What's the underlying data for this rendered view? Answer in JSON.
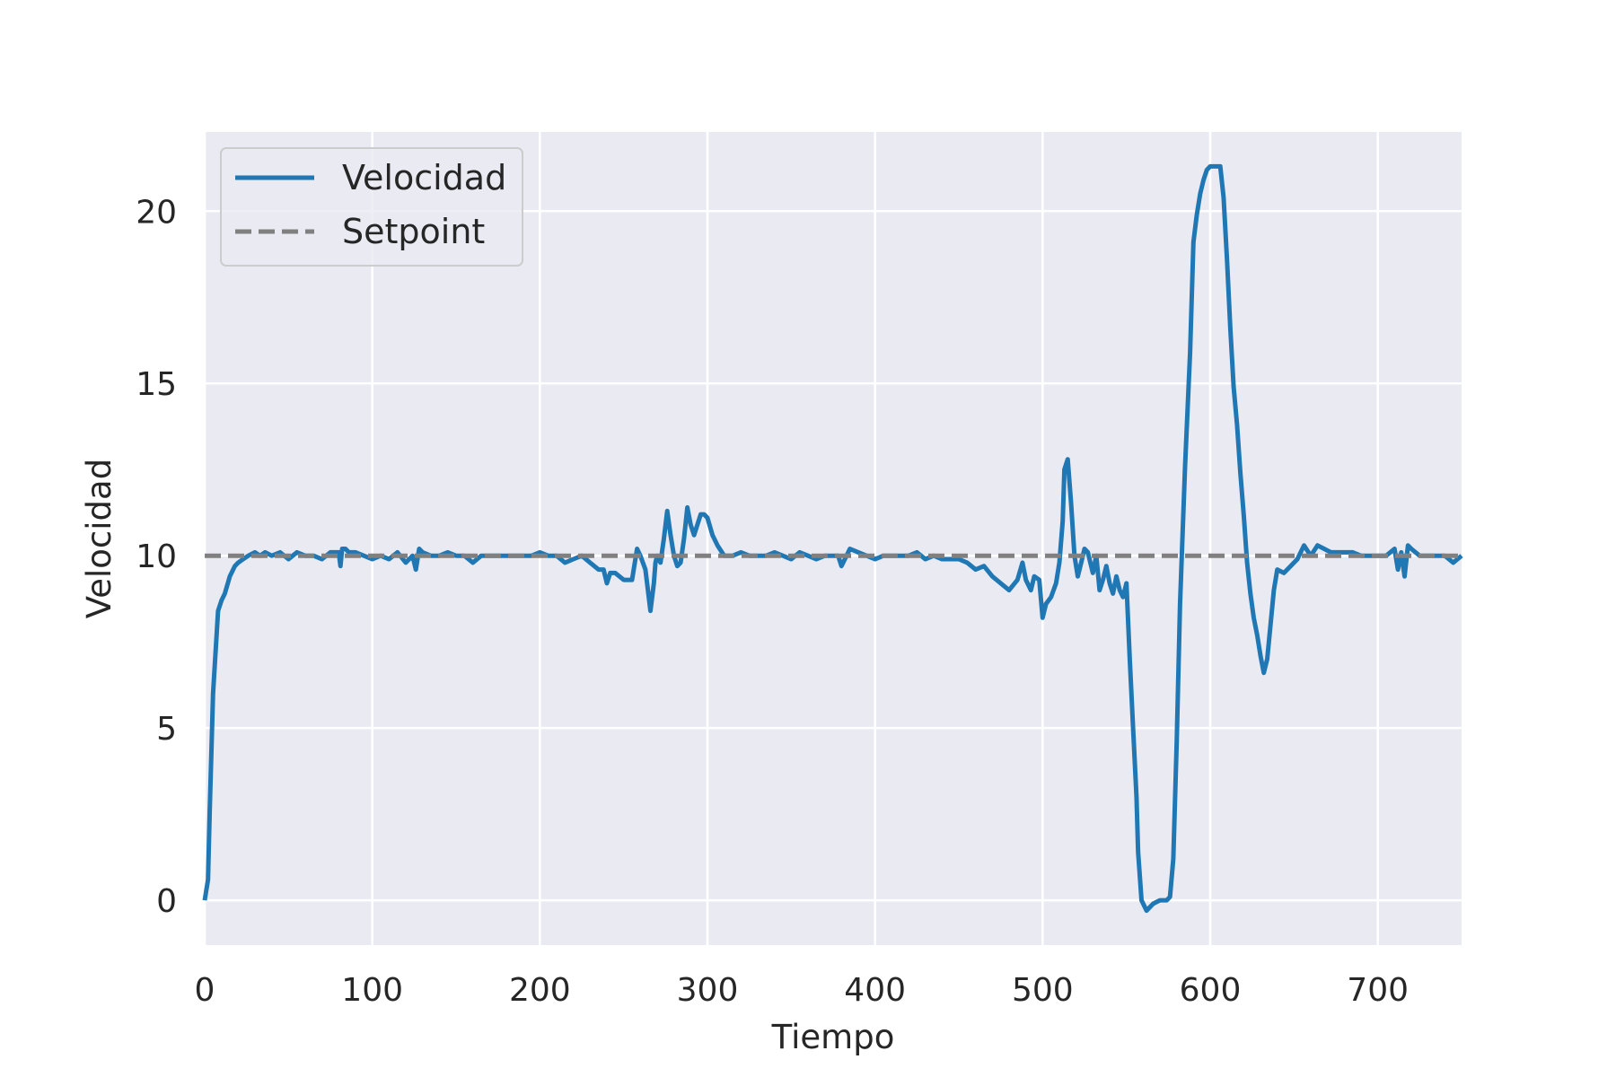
{
  "chart_data": {
    "type": "line",
    "title": "",
    "xlabel": "Tiempo",
    "ylabel": "Velocidad",
    "xlim": [
      0,
      750
    ],
    "ylim": [
      -1.3,
      22.3
    ],
    "xticks": [
      0,
      100,
      200,
      300,
      400,
      500,
      600,
      700
    ],
    "yticks": [
      0,
      5,
      10,
      15,
      20
    ],
    "grid": true,
    "legend": {
      "position": "top-left"
    },
    "colors": {
      "background": "#eaeaf2",
      "grid": "#ffffff",
      "velocidad": "#1f77b4",
      "setpoint": "#808080",
      "text": "#262626"
    },
    "series": [
      {
        "name": "Velocidad",
        "style": "solid",
        "x": [
          0,
          2,
          3,
          5,
          8,
          10,
          12,
          15,
          18,
          20,
          23,
          26,
          30,
          33,
          36,
          40,
          45,
          50,
          55,
          60,
          65,
          70,
          75,
          80,
          81,
          82,
          84,
          86,
          90,
          95,
          100,
          105,
          110,
          115,
          120,
          124,
          126,
          128,
          130,
          135,
          140,
          145,
          150,
          155,
          160,
          165,
          170,
          175,
          180,
          185,
          190,
          195,
          200,
          205,
          210,
          215,
          220,
          225,
          230,
          235,
          238,
          240,
          242,
          245,
          250,
          252,
          255,
          258,
          260,
          263,
          266,
          268,
          269,
          270,
          272,
          274,
          276,
          278,
          280,
          282,
          284,
          286,
          288,
          290,
          292,
          294,
          296,
          298,
          300,
          303,
          306,
          310,
          315,
          320,
          325,
          330,
          335,
          340,
          345,
          350,
          355,
          360,
          365,
          370,
          375,
          378,
          380,
          385,
          390,
          395,
          400,
          405,
          410,
          415,
          420,
          425,
          430,
          435,
          440,
          445,
          450,
          455,
          460,
          465,
          470,
          475,
          480,
          485,
          488,
          490,
          493,
          495,
          498,
          500,
          502,
          505,
          508,
          510,
          512,
          513,
          515,
          517,
          519,
          521,
          523,
          525,
          527,
          530,
          532,
          534,
          536,
          538,
          540,
          542,
          544,
          546,
          548,
          550,
          552,
          554,
          556,
          557,
          559,
          562,
          566,
          570,
          572,
          574,
          576,
          578,
          580,
          582,
          585,
          588,
          590,
          592,
          594,
          596,
          598,
          600,
          602,
          604,
          606,
          608,
          610,
          612,
          614,
          616,
          618,
          620,
          622,
          624,
          626,
          628,
          630,
          632,
          634,
          636,
          638,
          640,
          644,
          648,
          652,
          656,
          660,
          664,
          668,
          672,
          676,
          680,
          685,
          690,
          695,
          700,
          705,
          710,
          712,
          714,
          716,
          718,
          720,
          725,
          730,
          735,
          740,
          745,
          750
        ],
        "y": [
          0.0,
          0.6,
          2.6,
          6.0,
          8.4,
          8.7,
          8.9,
          9.4,
          9.7,
          9.8,
          9.9,
          10.0,
          10.1,
          10.0,
          10.1,
          10.0,
          10.1,
          9.9,
          10.1,
          10.0,
          10.0,
          9.9,
          10.1,
          10.1,
          9.7,
          10.2,
          10.2,
          10.1,
          10.1,
          10.0,
          9.9,
          10.0,
          9.9,
          10.1,
          9.8,
          10.0,
          9.6,
          10.2,
          10.1,
          10.0,
          10.0,
          10.1,
          10.0,
          10.0,
          9.8,
          10.0,
          10.0,
          10.0,
          10.0,
          10.0,
          10.0,
          10.0,
          10.1,
          10.0,
          10.0,
          9.8,
          9.9,
          10.0,
          9.8,
          9.6,
          9.6,
          9.2,
          9.5,
          9.5,
          9.3,
          9.3,
          9.3,
          10.2,
          10.0,
          9.6,
          8.4,
          9.2,
          9.8,
          10.0,
          9.8,
          10.5,
          11.3,
          10.6,
          10.0,
          9.7,
          9.8,
          10.5,
          11.4,
          10.9,
          10.6,
          10.9,
          11.2,
          11.2,
          11.1,
          10.6,
          10.3,
          10.0,
          10.0,
          10.1,
          10.0,
          10.0,
          10.0,
          10.1,
          10.0,
          9.9,
          10.1,
          10.0,
          9.9,
          10.0,
          10.0,
          10.0,
          9.7,
          10.2,
          10.1,
          10.0,
          9.9,
          10.0,
          10.0,
          10.0,
          10.0,
          10.1,
          9.9,
          10.0,
          9.9,
          9.9,
          9.9,
          9.8,
          9.6,
          9.7,
          9.4,
          9.2,
          9.0,
          9.3,
          9.8,
          9.3,
          9.0,
          9.4,
          9.3,
          8.2,
          8.6,
          8.8,
          9.2,
          9.8,
          11.0,
          12.5,
          12.8,
          11.5,
          10.0,
          9.4,
          9.8,
          10.2,
          10.1,
          9.5,
          10.0,
          9.0,
          9.3,
          9.7,
          9.2,
          8.9,
          9.4,
          9.0,
          8.8,
          9.2,
          7.0,
          5.0,
          3.0,
          1.4,
          0.0,
          -0.3,
          -0.1,
          0.0,
          0.0,
          0.0,
          0.1,
          1.2,
          4.6,
          8.6,
          12.6,
          15.9,
          19.1,
          19.9,
          20.5,
          20.9,
          21.2,
          21.3,
          21.3,
          21.3,
          21.3,
          20.4,
          18.6,
          16.6,
          14.9,
          13.8,
          12.4,
          11.2,
          9.8,
          8.9,
          8.2,
          7.7,
          7.1,
          6.6,
          7.0,
          8.0,
          9.0,
          9.6,
          9.5,
          9.7,
          9.9,
          10.3,
          10.0,
          10.3,
          10.2,
          10.1,
          10.1,
          10.1,
          10.1,
          10.0,
          10.0,
          10.0,
          10.0,
          10.2,
          9.6,
          10.1,
          9.4,
          10.3,
          10.2,
          10.0,
          10.0,
          10.0,
          10.0,
          9.8,
          10.0
        ]
      },
      {
        "name": "Setpoint",
        "style": "dashed",
        "x": [
          0,
          750
        ],
        "y": [
          10,
          10
        ]
      }
    ]
  }
}
